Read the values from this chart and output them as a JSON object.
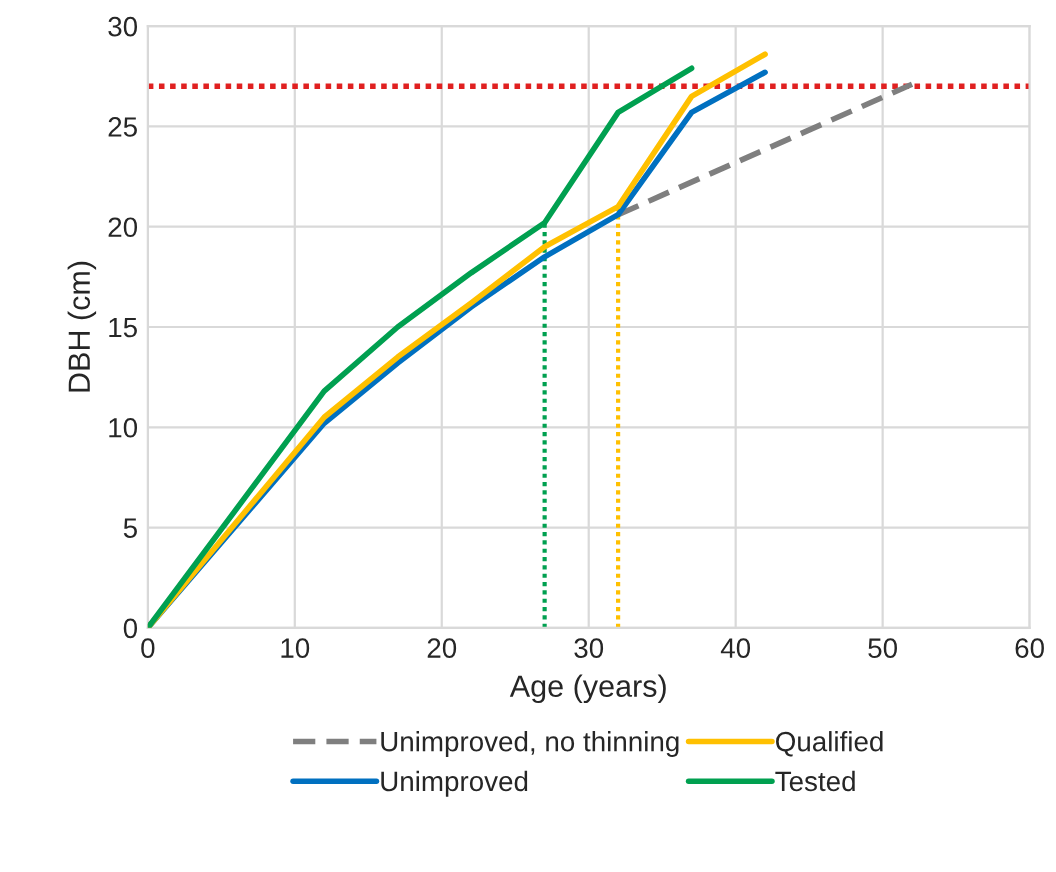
{
  "chart_data": {
    "type": "line",
    "xlabel": "Age (years)",
    "ylabel": "DBH (cm)",
    "xlim": [
      0,
      60
    ],
    "xticks": [
      0,
      10,
      20,
      30,
      40,
      50,
      60
    ],
    "ylim": [
      0,
      30
    ],
    "yticks": [
      0,
      5,
      10,
      15,
      20,
      25,
      30
    ],
    "grid": true,
    "legend": "bottom",
    "line_style": "solid",
    "marker": "none",
    "series": [
      {
        "name": "Unimproved, no thinning",
        "color": "#7f7f7f",
        "line_style": "dashed",
        "x": [
          32,
          52
        ],
        "values": [
          20.6,
          27.1
        ]
      },
      {
        "name": "Unimproved",
        "color": "#0070c0",
        "x": [
          0,
          12,
          17,
          22,
          27,
          32,
          37,
          42
        ],
        "values": [
          0,
          10.2,
          13.2,
          16.0,
          18.5,
          20.6,
          25.7,
          27.7
        ]
      },
      {
        "name": "Qualified",
        "color": "#ffc000",
        "x": [
          0,
          12,
          17,
          22,
          27,
          32,
          37,
          42
        ],
        "values": [
          0,
          10.5,
          13.5,
          16.2,
          19.0,
          21.0,
          26.5,
          28.6
        ]
      },
      {
        "name": "Tested",
        "color": "#00a050",
        "x": [
          0,
          12,
          17,
          22,
          27,
          32,
          37
        ],
        "values": [
          0,
          11.8,
          15.0,
          17.7,
          20.2,
          25.7,
          27.9
        ]
      }
    ],
    "ref_lines": [
      {
        "axis": "y",
        "value": 27,
        "color": "#e02020",
        "line_style": "dotted"
      },
      {
        "axis": "x",
        "value": 27,
        "color": "#00a050",
        "line_style": "dotted"
      },
      {
        "axis": "x",
        "value": 32,
        "color": "#ffc000",
        "line_style": "dotted"
      }
    ]
  }
}
